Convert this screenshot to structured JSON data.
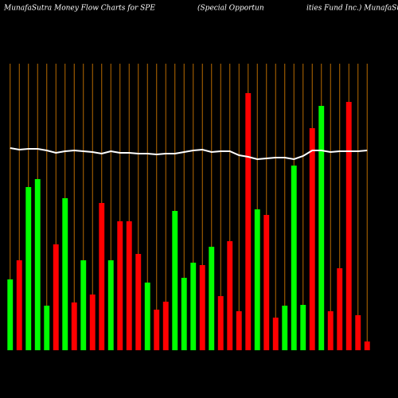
{
  "chart_data": {
    "type": "bar",
    "title": "MunafaSutra  Money Flow  Charts for SPE",
    "subtitle": "(Special Opportun",
    "subtitle_right": "ities Fund Inc.) MunafaSutra.com",
    "categories": [
      null,
      null,
      null,
      null,
      null,
      null,
      null,
      null,
      null,
      null,
      null,
      null,
      null,
      null,
      null,
      null,
      null,
      null,
      null,
      null,
      null,
      null,
      null,
      null,
      null,
      null,
      null,
      null,
      null,
      null,
      null,
      null,
      null,
      null,
      null,
      null,
      null,
      null,
      null,
      null
    ],
    "values": [
      89,
      113,
      205,
      215,
      56,
      133,
      191,
      60,
      113,
      70,
      185,
      113,
      162,
      162,
      121,
      85,
      51,
      61,
      175,
      91,
      110,
      107,
      130,
      68,
      137,
      49,
      323,
      177,
      170,
      41,
      56,
      232,
      57,
      279,
      307,
      49,
      103,
      312,
      44,
      11
    ],
    "colors": [
      "#00ff00",
      "#ff0000",
      "#00ff00",
      "#00ff00",
      "#00ff00",
      "#ff0000",
      "#00ff00",
      "#ff0000",
      "#00ff00",
      "#ff0000",
      "#ff0000",
      "#00ff00",
      "#ff0000",
      "#ff0000",
      "#ff0000",
      "#00ff00",
      "#ff0000",
      "#ff0000",
      "#00ff00",
      "#00ff00",
      "#00ff00",
      "#ff0000",
      "#00ff00",
      "#ff0000",
      "#ff0000",
      "#ff0000",
      "#ff0000",
      "#00ff00",
      "#ff0000",
      "#ff0000",
      "#00ff00",
      "#00ff00",
      "#00ff00",
      "#ff0000",
      "#00ff00",
      "#ff0000",
      "#ff0000",
      "#ff0000",
      "#ff0000",
      "#ff0000"
    ],
    "line": {
      "color": "#ffffff",
      "values": [
        254,
        252,
        253,
        253,
        251,
        248,
        250,
        251,
        250,
        249,
        247,
        250,
        248,
        248,
        247,
        247,
        246,
        247,
        247,
        249,
        251,
        252,
        249,
        250,
        250,
        245,
        243,
        240,
        241,
        242,
        242,
        240,
        244,
        251,
        251,
        249,
        250,
        250,
        250,
        251
      ]
    },
    "grid_color": "#b86a00",
    "ylim": [
      0,
      360
    ]
  }
}
